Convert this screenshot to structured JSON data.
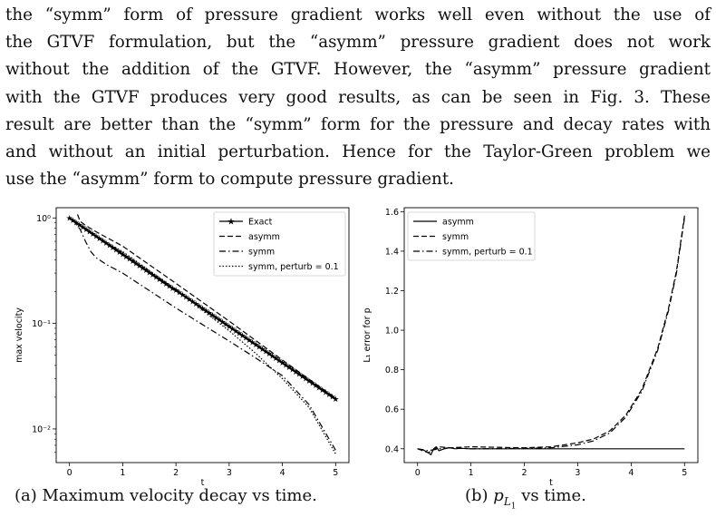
{
  "paragraph": {
    "lines": [
      "the “symm” form of pressure gradient works well even without the use of",
      "the GTVF formulation, but the “asymm” pressure gradient does not work",
      "without the addition of the GTVF. However, the “asymm” pressure gradient",
      "with the GTVF produces very good results, as can be seen in Fig. 3. These",
      "result are better than the “symm” form for the pressure and decay rates with",
      "and without an initial perturbation. Hence for the Taylor-Green problem we",
      "use the “asymm” form to compute pressure gradient."
    ]
  },
  "captions": {
    "a": "(a) Maximum velocity decay vs time.",
    "b_prefix": "(b) ",
    "b_symbol": "p",
    "b_sub": "L",
    "b_subsub": "1",
    "b_suffix": " vs time."
  },
  "chart_data": [
    {
      "type": "line",
      "xlabel": "t",
      "ylabel": "max velocity",
      "yscale": "log",
      "xlim": [
        -0.25,
        5.25
      ],
      "ylim": [
        0.0048,
        1.25
      ],
      "xticks": [
        0,
        1,
        2,
        3,
        4,
        5
      ],
      "xtick_labels": [
        "0",
        "1",
        "2",
        "3",
        "4",
        "5"
      ],
      "yticks": [
        1,
        0.1,
        0.01
      ],
      "ytick_labels": [
        "10⁰",
        "10⁻¹",
        "10⁻²"
      ],
      "legend_position": "top-right",
      "grid": false,
      "series": [
        {
          "name": "Exact",
          "style": "solid-star",
          "x": [
            0,
            5
          ],
          "y": [
            1.0,
            0.0193
          ]
        },
        {
          "name": "asymm",
          "style": "dashed",
          "x": [
            0.15,
            0.2,
            0.3,
            0.5,
            1,
            2,
            3,
            4,
            5
          ],
          "y": [
            1.08,
            0.93,
            0.85,
            0.74,
            0.54,
            0.24,
            0.105,
            0.045,
            0.0195
          ]
        },
        {
          "name": "symm",
          "style": "dashdot",
          "x": [
            0,
            0.1,
            0.2,
            0.3,
            0.4,
            0.5,
            0.7,
            1,
            2,
            3,
            3.5,
            4,
            4.5,
            5
          ],
          "y": [
            1.0,
            0.9,
            0.78,
            0.6,
            0.48,
            0.42,
            0.36,
            0.3,
            0.14,
            0.068,
            0.047,
            0.032,
            0.017,
            0.0063
          ]
        },
        {
          "name": "symm, perturb = 0.1",
          "style": "dotted",
          "x": [
            0,
            0.5,
            1,
            2,
            3,
            3.5,
            4,
            4.5,
            5
          ],
          "y": [
            1.0,
            0.66,
            0.48,
            0.21,
            0.085,
            0.052,
            0.03,
            0.016,
            0.0058
          ]
        }
      ]
    },
    {
      "type": "line",
      "xlabel": "t",
      "ylabel": "L₁ error for p",
      "xlim": [
        -0.25,
        5.25
      ],
      "ylim": [
        0.33,
        1.62
      ],
      "xticks": [
        0,
        1,
        2,
        3,
        4,
        5
      ],
      "xtick_labels": [
        "0",
        "1",
        "2",
        "3",
        "4",
        "5"
      ],
      "yticks": [
        0.4,
        0.6,
        0.8,
        1.0,
        1.2,
        1.4,
        1.6
      ],
      "ytick_labels": [
        "0.4",
        "0.6",
        "0.8",
        "1.0",
        "1.2",
        "1.4",
        "1.6"
      ],
      "legend_position": "top-left",
      "grid": false,
      "series": [
        {
          "name": "asymm",
          "style": "solid",
          "x": [
            0,
            0.1,
            0.2,
            0.25,
            0.3,
            0.35,
            0.4,
            0.5,
            0.6,
            0.7,
            0.8,
            1,
            2,
            3,
            4,
            5
          ],
          "y": [
            0.4,
            0.395,
            0.38,
            0.37,
            0.4,
            0.41,
            0.39,
            0.4,
            0.405,
            0.4,
            0.402,
            0.4,
            0.4,
            0.4,
            0.4,
            0.4
          ]
        },
        {
          "name": "symm",
          "style": "dashed",
          "x": [
            0,
            0.2,
            0.4,
            0.6,
            1,
            2,
            2.5,
            3,
            3.3,
            3.6,
            3.9,
            4.2,
            4.5,
            4.7,
            4.85,
            5
          ],
          "y": [
            0.4,
            0.38,
            0.41,
            0.405,
            0.41,
            0.405,
            0.41,
            0.43,
            0.45,
            0.49,
            0.57,
            0.7,
            0.91,
            1.11,
            1.3,
            1.58
          ]
        },
        {
          "name": "symm, perturb = 0.1",
          "style": "dashdot",
          "x": [
            0,
            0.2,
            0.4,
            0.6,
            1,
            2,
            2.5,
            3,
            3.3,
            3.6,
            3.9,
            4.2,
            4.5,
            4.7,
            4.85,
            5
          ],
          "y": [
            0.4,
            0.39,
            0.4,
            0.405,
            0.4,
            0.402,
            0.405,
            0.42,
            0.44,
            0.48,
            0.56,
            0.69,
            0.9,
            1.1,
            1.29,
            1.57
          ]
        }
      ]
    }
  ]
}
